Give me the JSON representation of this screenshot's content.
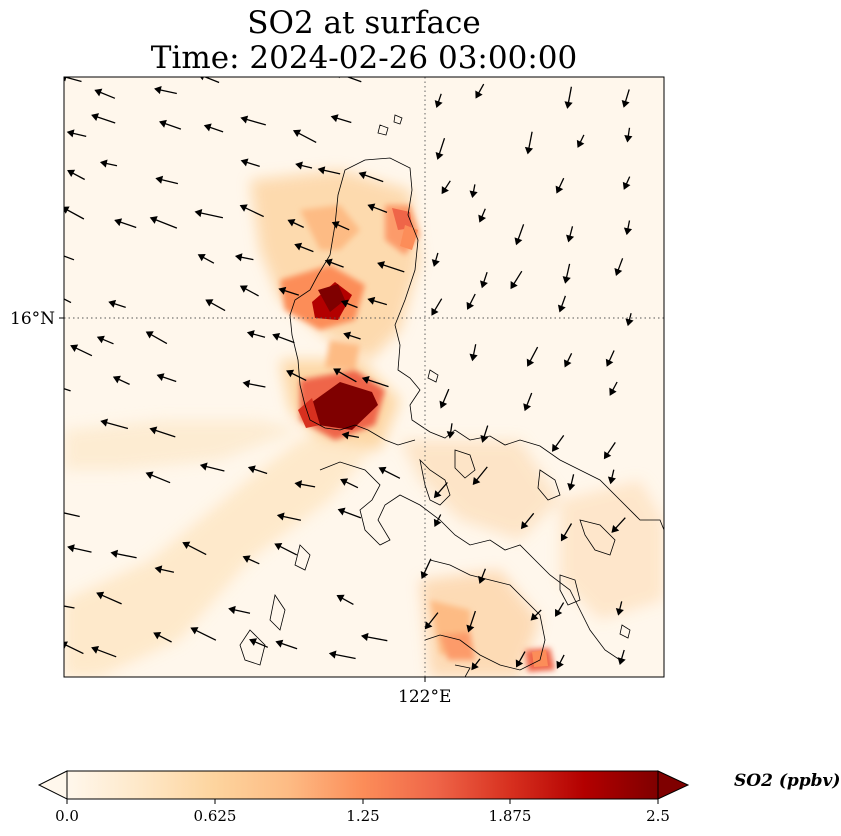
{
  "title": {
    "line1": "SO2 at surface",
    "line2": "Time: 2024-02-26 03:00:00"
  },
  "axes": {
    "lat_label": "16°N",
    "lon_label": "122°E"
  },
  "colorbar": {
    "label": "SO2 (ppbv)",
    "ticks": [
      "0.0",
      "0.625",
      "1.25",
      "1.875",
      "2.5"
    ],
    "min": 0,
    "max": 2.5,
    "colormap": "OrRd",
    "colors": [
      "#fff7ec",
      "#fee8c8",
      "#fdd49e",
      "#fdbb84",
      "#fc8d59",
      "#ef6548",
      "#d7301f",
      "#b30000",
      "#7f0000"
    ]
  },
  "map": {
    "background_color": "#fff7ec",
    "gridlines": "dotted",
    "features": [
      "coastlines",
      "wind-vectors",
      "so2-concentration"
    ]
  }
}
